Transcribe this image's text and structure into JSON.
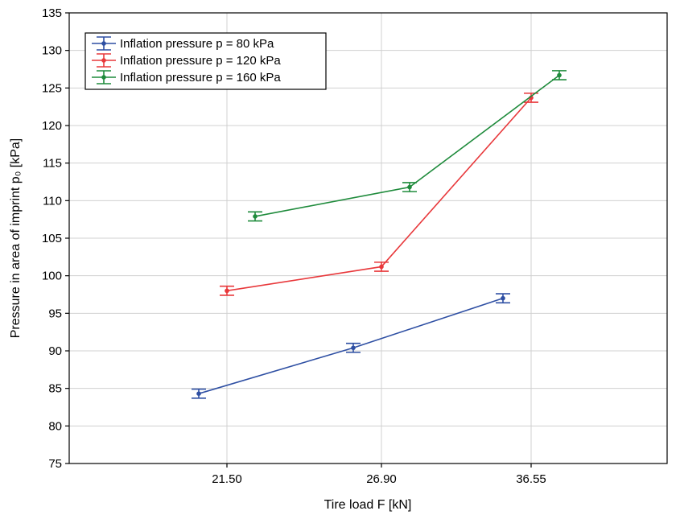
{
  "chart_data": {
    "type": "line",
    "xlabel": "Tire load F [kN]",
    "ylabel": "Pressure in area of imprint p₀ [kPa]",
    "categories": [
      "21.50",
      "26.90",
      "36.55"
    ],
    "ylim": [
      75,
      135
    ],
    "yticks": [
      75,
      80,
      85,
      90,
      95,
      100,
      105,
      110,
      115,
      120,
      125,
      130,
      135
    ],
    "grid": true,
    "legend_position": "top-left",
    "series": [
      {
        "name": "Inflation pressure p = 80 kPa",
        "color": "#2e4fa3",
        "offset": -1,
        "values": [
          84.3,
          90.4,
          97.0
        ],
        "errors": [
          0.6,
          0.6,
          0.6
        ]
      },
      {
        "name": "Inflation pressure p = 120 kPa",
        "color": "#e8383b",
        "offset": 0,
        "values": [
          98.0,
          101.2,
          123.7
        ],
        "errors": [
          0.6,
          0.6,
          0.6
        ]
      },
      {
        "name": "Inflation pressure p = 160 kPa",
        "color": "#1f8b3c",
        "offset": 1,
        "values": [
          107.9,
          111.8,
          126.7
        ],
        "errors": [
          0.6,
          0.6,
          0.6
        ]
      }
    ]
  }
}
